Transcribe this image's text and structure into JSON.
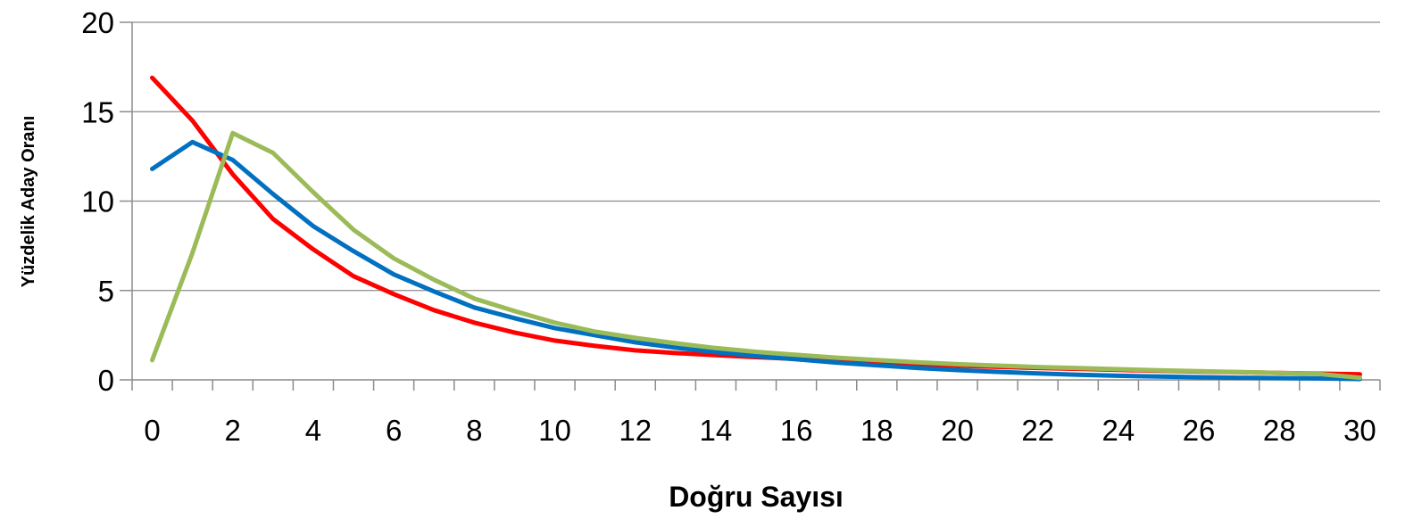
{
  "chart_data": {
    "type": "line",
    "title": "",
    "xlabel": "Doğru Sayısı",
    "ylabel": "Yüzdelik Aday Oranı",
    "x": [
      0,
      1,
      2,
      3,
      4,
      5,
      6,
      7,
      8,
      9,
      10,
      11,
      12,
      13,
      14,
      15,
      16,
      17,
      18,
      19,
      20,
      21,
      22,
      23,
      24,
      25,
      26,
      27,
      28,
      29,
      30
    ],
    "x_ticks": [
      "0",
      "2",
      "4",
      "6",
      "8",
      "10",
      "12",
      "14",
      "16",
      "18",
      "20",
      "22",
      "24",
      "26",
      "28",
      "30"
    ],
    "y_ticks": [
      "0",
      "5",
      "10",
      "15",
      "20"
    ],
    "ylim": [
      0,
      20
    ],
    "grid": true,
    "legend": "none",
    "series": [
      {
        "color": "#ff0000",
        "values": [
          16.9,
          14.5,
          11.5,
          9.0,
          7.3,
          5.8,
          4.8,
          3.9,
          3.2,
          2.65,
          2.2,
          1.9,
          1.65,
          1.5,
          1.38,
          1.27,
          1.17,
          1.07,
          0.97,
          0.88,
          0.8,
          0.73,
          0.67,
          0.62,
          0.56,
          0.51,
          0.47,
          0.43,
          0.39,
          0.35,
          0.31
        ]
      },
      {
        "color": "#0070c0",
        "values": [
          11.8,
          13.3,
          12.3,
          10.4,
          8.6,
          7.2,
          5.9,
          4.95,
          4.05,
          3.45,
          2.9,
          2.5,
          2.1,
          1.8,
          1.55,
          1.33,
          1.15,
          0.97,
          0.82,
          0.67,
          0.55,
          0.45,
          0.36,
          0.29,
          0.23,
          0.19,
          0.15,
          0.12,
          0.1,
          0.08,
          0.05
        ]
      },
      {
        "color": "#9bbb59",
        "values": [
          1.1,
          7.1,
          13.8,
          12.7,
          10.5,
          8.4,
          6.8,
          5.6,
          4.55,
          3.85,
          3.2,
          2.7,
          2.35,
          2.05,
          1.78,
          1.57,
          1.4,
          1.24,
          1.11,
          0.99,
          0.88,
          0.8,
          0.72,
          0.66,
          0.6,
          0.54,
          0.49,
          0.44,
          0.39,
          0.33,
          0.12
        ]
      }
    ]
  }
}
